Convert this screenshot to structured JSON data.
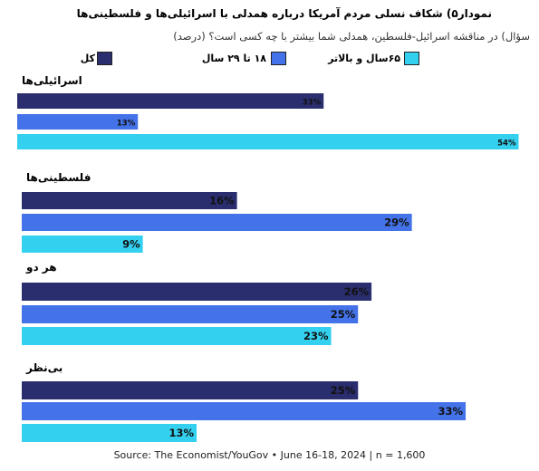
{
  "chart_data": {
    "type": "bar",
    "title": "نمودار۵) شکاف نسلی مردم آمریکا درباره همدلی با اسرائیلی‌ها و فلسطینی‌ها",
    "subtitle": "سؤال) در مناقشه اسرائیل-فلسطین، همدلی شما بیشتر با چه کسی است؟ (درصد)",
    "categories": [
      "اسرائیلی‌ها",
      "فلسطینی‌ها",
      "هر دو",
      "بی‌نظر"
    ],
    "series": [
      {
        "name": "کل",
        "color": "#2b2e6e",
        "values": [
          33,
          16,
          26,
          25
        ]
      },
      {
        "name": "۱۸ تا ۲۹ سال",
        "color": "#4472e8",
        "values": [
          13,
          29,
          25,
          33
        ]
      },
      {
        "name": "۶۵سال و بالاتر",
        "color": "#33d0ef",
        "values": [
          54,
          9,
          23,
          13
        ]
      }
    ],
    "value_suffix": "%",
    "xlim": [
      0,
      54
    ],
    "grid": false,
    "legend": "top"
  },
  "source": "Source: The Economist/YouGov • June 16-18, 2024 | n = 1,600"
}
